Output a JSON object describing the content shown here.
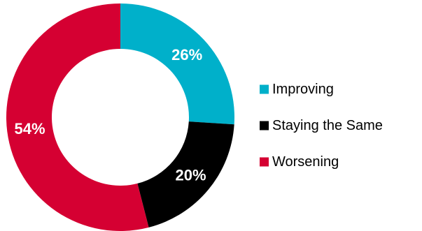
{
  "chart_data": {
    "type": "pie",
    "variant": "donut",
    "categories": [
      "Improving",
      "Staying the Same",
      "Worsening"
    ],
    "values": [
      26,
      20,
      54
    ],
    "labels": [
      "26%",
      "20%",
      "54%"
    ],
    "colors": [
      "#00b0ca",
      "#000000",
      "#d50032"
    ],
    "legend_position": "right",
    "start_angle": "top",
    "direction": "clockwise"
  }
}
